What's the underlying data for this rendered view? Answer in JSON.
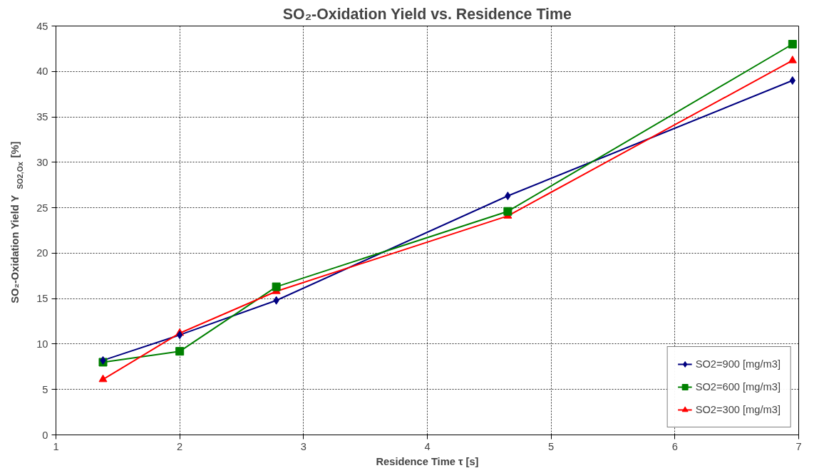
{
  "chart_data": {
    "type": "line",
    "title": "SO₂-Oxidation Yield vs. Residence Time",
    "xlabel": "Residence Time τ [s]",
    "ylabel": "SO₂-Oxidation Yield Y$_{SO2,Ox}$ [%]",
    "x": [
      1.38,
      2.0,
      2.78,
      4.65,
      6.95
    ],
    "series": [
      {
        "name": "SO2=900 [mg/m3]",
        "color": "#000080",
        "marker": "diamond",
        "values": [
          8.2,
          11.0,
          14.8,
          26.3,
          39.0
        ]
      },
      {
        "name": "SO2=600 [mg/m3]",
        "color": "#008000",
        "marker": "square",
        "values": [
          8.0,
          9.2,
          16.3,
          24.6,
          43.0
        ]
      },
      {
        "name": "SO2=300 [mg/m3]",
        "color": "#ff0000",
        "marker": "triangle",
        "values": [
          6.1,
          11.2,
          15.8,
          24.1,
          41.2
        ]
      }
    ],
    "xlim": [
      1,
      7
    ],
    "xticks": [
      1,
      2,
      3,
      4,
      5,
      6,
      7
    ],
    "ylim": [
      0,
      45
    ],
    "yticks": [
      0,
      5,
      10,
      15,
      20,
      25,
      30,
      35,
      40,
      45
    ],
    "grid": true,
    "legend": "bottom right",
    "line_style": "solid"
  }
}
